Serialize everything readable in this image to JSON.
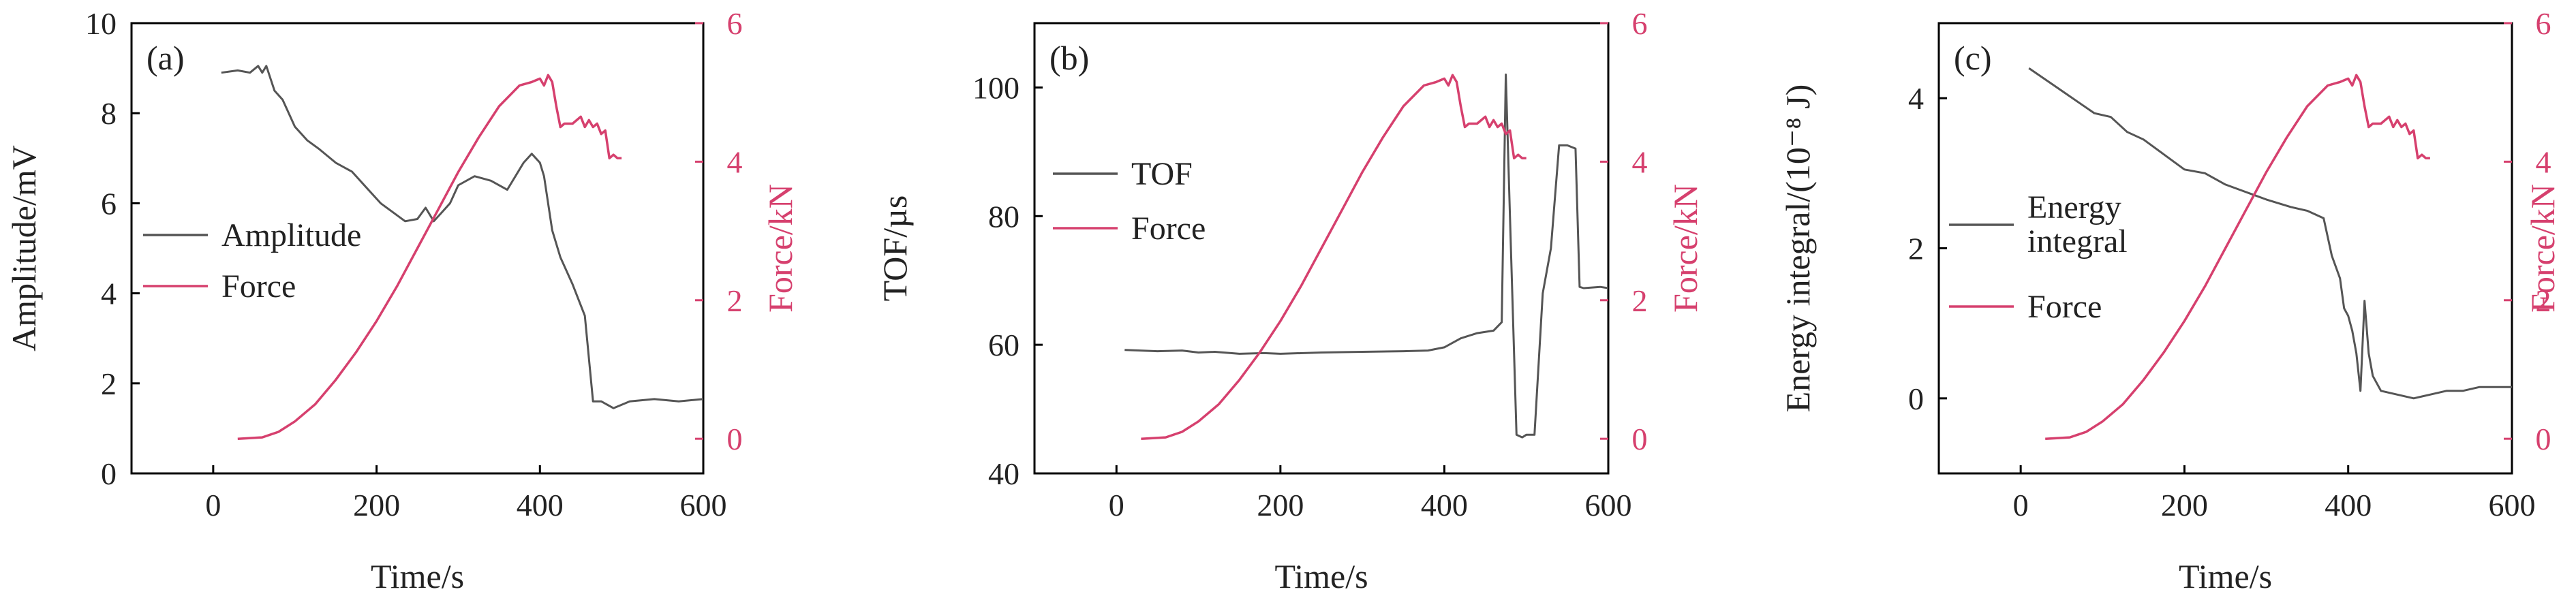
{
  "colors": {
    "series": "#555555",
    "force": "#d6406e"
  },
  "figure": {
    "panels": [
      {
        "label": "(a)",
        "xlabel": "Time/s",
        "ylabel": "Amplitude/mV",
        "y2label": "Force/kN",
        "legend": [
          "Amplitude",
          "Force"
        ],
        "xticks": [
          "0",
          "200",
          "400",
          "600"
        ],
        "yticks": [
          "0",
          "2",
          "4",
          "6",
          "8",
          "10"
        ],
        "y2ticks": [
          "0",
          "2",
          "4",
          "6"
        ]
      },
      {
        "label": "(b)",
        "xlabel": "Time/s",
        "ylabel": "TOF/µs",
        "y2label": "Force/kN",
        "legend": [
          "TOF",
          "Force"
        ],
        "xticks": [
          "0",
          "200",
          "400",
          "600"
        ],
        "yticks": [
          "40",
          "60",
          "80",
          "100"
        ],
        "y2ticks": [
          "0",
          "2",
          "4",
          "6"
        ]
      },
      {
        "label": "(c)",
        "xlabel": "Time/s",
        "ylabel": "Energy integral/(10⁻⁸ J)",
        "y2label": "Force/kN",
        "legend": [
          "Energy integral",
          "Force"
        ],
        "xticks": [
          "0",
          "200",
          "400",
          "600"
        ],
        "yticks": [
          "0",
          "2",
          "4"
        ],
        "y2ticks": [
          "0",
          "2",
          "4",
          "6"
        ]
      }
    ]
  },
  "chart_data": [
    {
      "type": "line",
      "xlim": [
        -100,
        600
      ],
      "ylim": [
        0,
        10
      ],
      "y2lim": [
        -0.5,
        6
      ],
      "series": [
        {
          "name": "Amplitude",
          "axis": "left",
          "x": [
            10,
            30,
            45,
            55,
            60,
            65,
            75,
            85,
            100,
            115,
            130,
            150,
            170,
            190,
            205,
            220,
            235,
            250,
            260,
            270,
            280,
            290,
            300,
            320,
            340,
            360,
            380,
            390,
            400,
            405,
            415,
            425,
            440,
            455,
            465,
            475,
            490,
            510,
            540,
            570,
            600
          ],
          "y": [
            8.9,
            8.95,
            8.9,
            9.05,
            8.9,
            9.05,
            8.5,
            8.3,
            7.7,
            7.4,
            7.2,
            6.9,
            6.7,
            6.3,
            6.0,
            5.8,
            5.6,
            5.65,
            5.9,
            5.6,
            5.8,
            6.0,
            6.4,
            6.6,
            6.5,
            6.3,
            6.9,
            7.1,
            6.9,
            6.6,
            5.4,
            4.8,
            4.2,
            3.5,
            1.6,
            1.6,
            1.45,
            1.6,
            1.65,
            1.6,
            1.65
          ]
        },
        {
          "name": "Force",
          "axis": "right",
          "x": [
            30,
            60,
            80,
            100,
            125,
            150,
            175,
            200,
            225,
            250,
            275,
            300,
            325,
            350,
            375,
            390,
            400,
            405,
            410,
            415,
            420,
            425,
            430,
            440,
            450,
            455,
            460,
            465,
            470,
            475,
            480,
            485,
            490,
            495,
            500
          ],
          "y": [
            0,
            0.02,
            0.1,
            0.25,
            0.5,
            0.85,
            1.25,
            1.7,
            2.2,
            2.75,
            3.3,
            3.85,
            4.35,
            4.8,
            5.1,
            5.15,
            5.2,
            5.1,
            5.25,
            5.15,
            4.8,
            4.5,
            4.55,
            4.55,
            4.65,
            4.5,
            4.6,
            4.5,
            4.55,
            4.4,
            4.45,
            4.05,
            4.1,
            4.05,
            4.05
          ]
        }
      ]
    },
    {
      "type": "line",
      "xlim": [
        -100,
        600
      ],
      "ylim": [
        40,
        110
      ],
      "y2lim": [
        -0.5,
        6
      ],
      "series": [
        {
          "name": "TOF",
          "axis": "left",
          "x": [
            10,
            50,
            80,
            100,
            120,
            150,
            180,
            200,
            250,
            300,
            350,
            380,
            400,
            420,
            440,
            460,
            470,
            475,
            480,
            488,
            495,
            500,
            510,
            520,
            530,
            540,
            550,
            560,
            565,
            570,
            590,
            600
          ],
          "y": [
            59.2,
            59.0,
            59.1,
            58.8,
            58.9,
            58.6,
            58.7,
            58.6,
            58.8,
            58.9,
            59.0,
            59.1,
            59.6,
            61.0,
            61.8,
            62.2,
            63.5,
            102.0,
            80.0,
            46.0,
            45.6,
            46.0,
            46.0,
            68.0,
            75.0,
            91.0,
            91.0,
            90.5,
            69.0,
            68.8,
            69.0,
            68.8
          ]
        },
        {
          "name": "Force",
          "axis": "right",
          "x": [
            30,
            60,
            80,
            100,
            125,
            150,
            175,
            200,
            225,
            250,
            275,
            300,
            325,
            350,
            375,
            390,
            400,
            405,
            410,
            415,
            420,
            425,
            430,
            440,
            450,
            455,
            460,
            465,
            470,
            475,
            480,
            485,
            490,
            495,
            500
          ],
          "y": [
            0,
            0.02,
            0.1,
            0.25,
            0.5,
            0.85,
            1.25,
            1.7,
            2.2,
            2.75,
            3.3,
            3.85,
            4.35,
            4.8,
            5.1,
            5.15,
            5.2,
            5.1,
            5.25,
            5.15,
            4.8,
            4.5,
            4.55,
            4.55,
            4.65,
            4.5,
            4.6,
            4.5,
            4.55,
            4.4,
            4.45,
            4.05,
            4.1,
            4.05,
            4.05
          ]
        }
      ]
    },
    {
      "type": "line",
      "xlim": [
        -100,
        600
      ],
      "ylim": [
        -1,
        5
      ],
      "y2lim": [
        -0.5,
        6
      ],
      "series": [
        {
          "name": "Energy integral",
          "axis": "left",
          "x": [
            10,
            30,
            50,
            70,
            90,
            110,
            130,
            150,
            175,
            200,
            225,
            250,
            275,
            300,
            330,
            350,
            370,
            380,
            390,
            395,
            400,
            405,
            410,
            415,
            420,
            425,
            430,
            440,
            460,
            480,
            500,
            520,
            540,
            560,
            580,
            600
          ],
          "y": [
            4.4,
            4.25,
            4.1,
            3.95,
            3.8,
            3.75,
            3.55,
            3.45,
            3.25,
            3.05,
            3.0,
            2.85,
            2.75,
            2.65,
            2.55,
            2.5,
            2.4,
            1.9,
            1.6,
            1.2,
            1.1,
            0.9,
            0.6,
            0.1,
            1.3,
            0.6,
            0.3,
            0.1,
            0.05,
            0.0,
            0.05,
            0.1,
            0.1,
            0.15,
            0.15,
            0.15
          ]
        },
        {
          "name": "Force",
          "axis": "right",
          "x": [
            30,
            60,
            80,
            100,
            125,
            150,
            175,
            200,
            225,
            250,
            275,
            300,
            325,
            350,
            375,
            390,
            400,
            405,
            410,
            415,
            420,
            425,
            430,
            440,
            450,
            455,
            460,
            465,
            470,
            475,
            480,
            485,
            490,
            495,
            500
          ],
          "y": [
            0,
            0.02,
            0.1,
            0.25,
            0.5,
            0.85,
            1.25,
            1.7,
            2.2,
            2.75,
            3.3,
            3.85,
            4.35,
            4.8,
            5.1,
            5.15,
            5.2,
            5.1,
            5.25,
            5.15,
            4.8,
            4.5,
            4.55,
            4.55,
            4.65,
            4.5,
            4.6,
            4.5,
            4.55,
            4.4,
            4.45,
            4.05,
            4.1,
            4.05,
            4.05
          ]
        }
      ]
    }
  ]
}
